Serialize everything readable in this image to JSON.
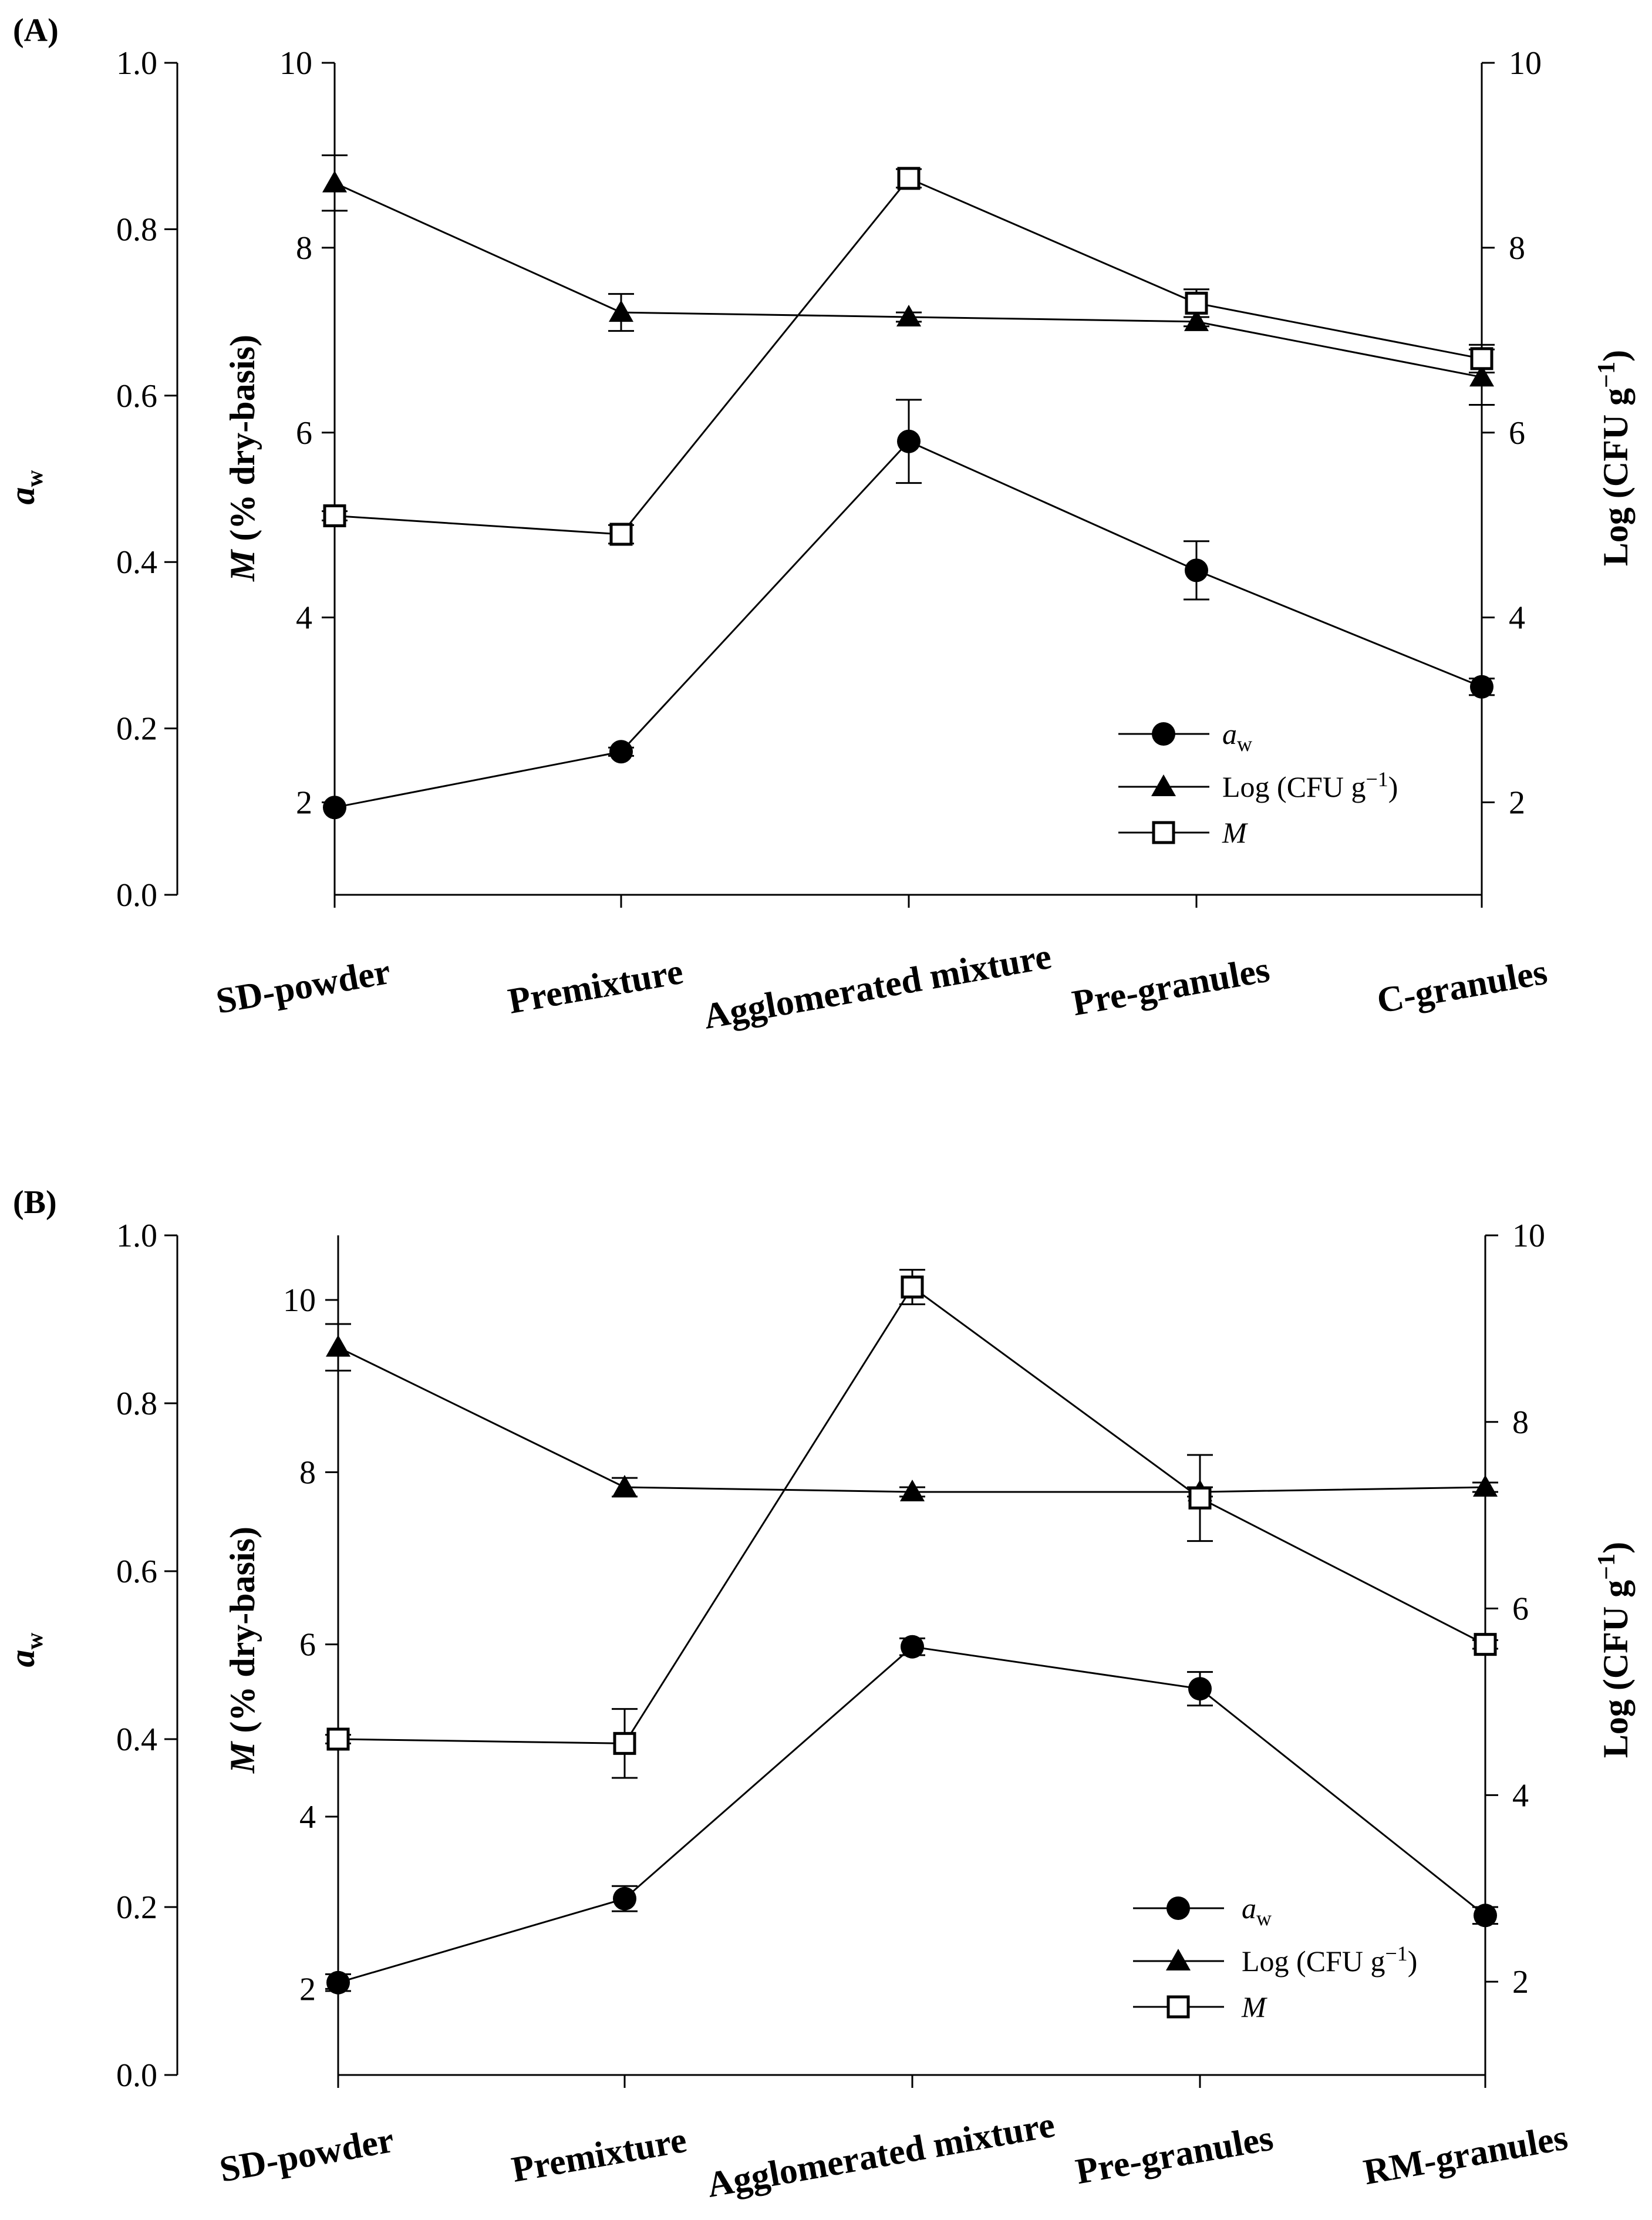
{
  "colors": {
    "line": "#000000",
    "background": "#ffffff",
    "open_marker": "#ffffff"
  },
  "chart_data": [
    {
      "type": "line",
      "panel_label": "(A)",
      "categories": [
        "SD-powder",
        "Premixture",
        "Agglomerated mixture",
        "Pre-granules",
        "C-granules"
      ],
      "y_left_outer": {
        "label": "a",
        "label_subscript": "w",
        "ylim": [
          0.0,
          1.0
        ],
        "ticks": [
          "0.0",
          "0.2",
          "0.4",
          "0.6",
          "0.8",
          "1.0"
        ]
      },
      "y_left_inner": {
        "label_italic": "M",
        "label_rest": " (% dry-basis)",
        "ylim": [
          1,
          10
        ],
        "ticks": [
          "2",
          "4",
          "6",
          "8",
          "10"
        ]
      },
      "y_right": {
        "label_main": "Log (CFU g",
        "label_sup": "−1",
        "label_end": ")",
        "ylim": [
          1,
          10
        ],
        "ticks": [
          "2",
          "4",
          "6",
          "8",
          "10"
        ]
      },
      "series": [
        {
          "name": "a",
          "name_subscript": "w",
          "marker": "filled-circle",
          "axis": "left_outer",
          "values": [
            0.105,
            0.172,
            0.545,
            0.39,
            0.25
          ],
          "errors": [
            0.0,
            0.005,
            0.05,
            0.035,
            0.01
          ]
        },
        {
          "name": "Log (CFU g",
          "name_sup": "−1",
          "name_end": ")",
          "marker": "filled-triangle",
          "axis": "right",
          "values": [
            8.7,
            7.3,
            7.25,
            7.2,
            6.6
          ],
          "errors": [
            0.3,
            0.2,
            0.05,
            0.05,
            0.3
          ]
        },
        {
          "name": "M",
          "italic": true,
          "marker": "open-square",
          "axis": "left_inner",
          "values": [
            5.1,
            4.9,
            8.75,
            7.4,
            6.8
          ],
          "errors": [
            0.05,
            0.1,
            0.1,
            0.15,
            0.15
          ]
        }
      ],
      "legend": "bottom-right"
    },
    {
      "type": "line",
      "panel_label": "(B)",
      "categories": [
        "SD-powder",
        "Premixture",
        "Agglomerated mixture",
        "Pre-granules",
        "RM-granules"
      ],
      "y_left_outer": {
        "label": "a",
        "label_subscript": "w",
        "ylim": [
          0.0,
          1.0
        ],
        "ticks": [
          "0.0",
          "0.2",
          "0.4",
          "0.6",
          "0.8",
          "1.0"
        ]
      },
      "y_left_inner": {
        "label_italic": "M",
        "label_rest": " (% dry-basis)",
        "ylim": [
          1,
          10.75
        ],
        "ticks": [
          "2",
          "4",
          "6",
          "8",
          "10"
        ]
      },
      "y_right": {
        "label_main": "Log (CFU g",
        "label_sup": "−1",
        "label_end": ")",
        "ylim": [
          1,
          10
        ],
        "ticks": [
          "2",
          "4",
          "6",
          "8",
          "10"
        ]
      },
      "series": [
        {
          "name": "a",
          "name_subscript": "w",
          "marker": "filled-circle",
          "axis": "left_outer",
          "values": [
            0.11,
            0.21,
            0.51,
            0.46,
            0.19
          ],
          "errors": [
            0.01,
            0.015,
            0.01,
            0.02,
            0.01
          ]
        },
        {
          "name": "Log (CFU g",
          "name_sup": "−1",
          "name_end": ")",
          "marker": "filled-triangle",
          "axis": "right",
          "values": [
            8.8,
            7.3,
            7.25,
            7.25,
            7.3
          ],
          "errors": [
            0.25,
            0.1,
            0.05,
            0.05,
            0.05
          ]
        },
        {
          "name": "M",
          "italic": true,
          "marker": "open-square",
          "axis": "left_inner",
          "values": [
            4.9,
            4.85,
            10.15,
            7.7,
            6.0
          ],
          "errors": [
            0.05,
            0.4,
            0.2,
            0.5,
            0.05
          ]
        }
      ],
      "legend": "bottom-right"
    }
  ]
}
